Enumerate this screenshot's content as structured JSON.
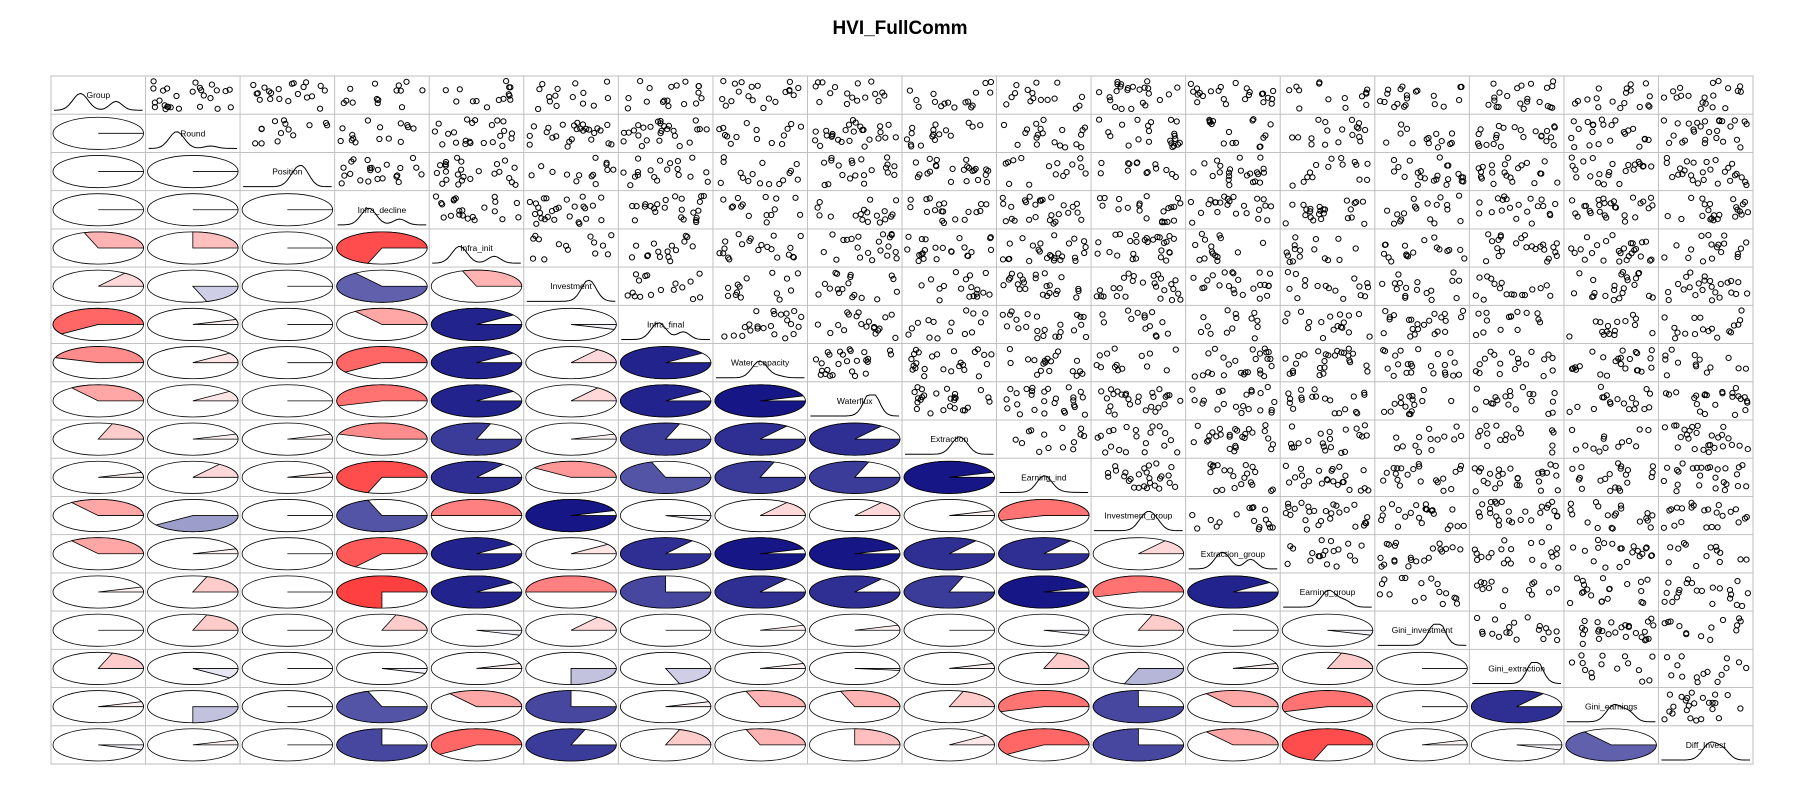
{
  "chart_data": {
    "type": "corrgram",
    "title": "HVI_FullComm",
    "lower_panel": "pie",
    "upper_panel": "scatter",
    "diag_panel": "density",
    "colors": {
      "positive": "#0a0a80",
      "negative": "#ff0000",
      "border": "#000000",
      "grid": "#bfbfbf"
    },
    "variables": [
      "Group",
      "Round",
      "Position",
      "Infra_decline",
      "Infra_init",
      "Investment",
      "Infra_final",
      "Water_capacity",
      "Waterflux",
      "Extraction",
      "Earning_ind",
      "Investment_group",
      "Extraction_group",
      "Earning_group",
      "Gini_investment",
      "Gini_extraction",
      "Gini_earnings",
      "Diff_Invest"
    ],
    "correlations_lower": [
      [],
      [
        0.0
      ],
      [
        0.0,
        0.0
      ],
      [
        0.0,
        0.0,
        0.0
      ],
      [
        -0.3,
        -0.25,
        0.0,
        -0.7
      ],
      [
        -0.15,
        0.2,
        0.0,
        0.65,
        -0.3
      ],
      [
        -0.6,
        -0.05,
        0.0,
        -0.35,
        0.9,
        0.05
      ],
      [
        -0.45,
        -0.1,
        0.0,
        -0.6,
        0.9,
        -0.15,
        0.9
      ],
      [
        -0.35,
        -0.1,
        0.0,
        -0.55,
        0.9,
        -0.15,
        0.9,
        0.95
      ],
      [
        -0.2,
        -0.05,
        -0.05,
        -0.45,
        0.8,
        -0.05,
        0.8,
        0.85,
        0.85
      ],
      [
        -0.05,
        -0.15,
        -0.05,
        -0.7,
        0.85,
        -0.4,
        0.7,
        0.8,
        0.8,
        0.95
      ],
      [
        -0.35,
        0.4,
        0.0,
        0.7,
        -0.5,
        0.95,
        0.05,
        -0.15,
        -0.15,
        -0.05,
        -0.55
      ],
      [
        -0.35,
        -0.05,
        0.0,
        -0.65,
        0.9,
        -0.1,
        0.85,
        0.95,
        0.95,
        0.85,
        0.85,
        -0.15
      ],
      [
        -0.05,
        -0.2,
        0.0,
        -0.75,
        0.9,
        -0.5,
        0.75,
        0.85,
        0.85,
        0.8,
        0.95,
        -0.55,
        0.9
      ],
      [
        0.0,
        -0.2,
        0.0,
        -0.2,
        0.05,
        -0.15,
        0.0,
        -0.05,
        -0.05,
        0.0,
        0.05,
        -0.2,
        0.0,
        0.05
      ],
      [
        -0.2,
        0.1,
        0.0,
        0.05,
        -0.05,
        0.25,
        0.2,
        -0.05,
        0.02,
        -0.05,
        -0.2,
        0.3,
        -0.05,
        -0.2,
        0.0
      ],
      [
        -0.05,
        0.25,
        0.0,
        0.7,
        -0.35,
        0.75,
        -0.05,
        -0.3,
        -0.3,
        -0.2,
        -0.55,
        0.75,
        -0.35,
        -0.55,
        0.0,
        0.85
      ],
      [
        0.05,
        -0.05,
        0.0,
        0.75,
        -0.6,
        0.8,
        -0.2,
        -0.3,
        -0.25,
        -0.1,
        -0.6,
        0.75,
        -0.35,
        -0.7,
        -0.05,
        0.05,
        0.65
      ]
    ]
  }
}
